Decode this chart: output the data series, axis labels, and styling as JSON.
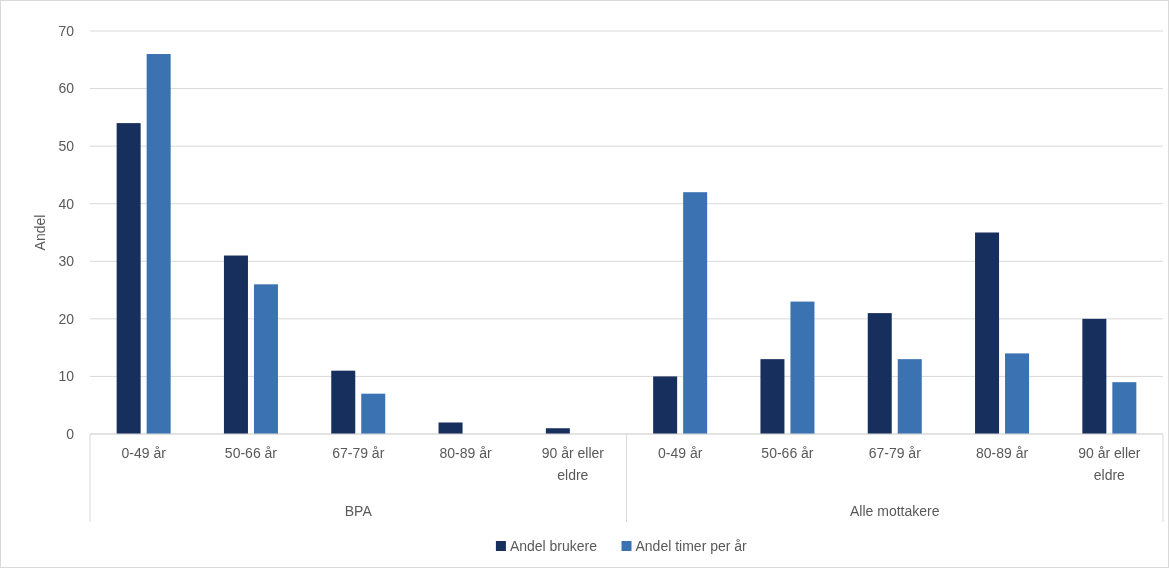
{
  "chart_data": {
    "type": "bar",
    "ylabel": "Andel",
    "categories": [
      "0-49 år",
      "50-66 år",
      "67-79 år",
      "80-89 år",
      "90 år eller eldre",
      "0-49 år",
      "50-66 år",
      "67-79 år",
      "80-89 år",
      "90 år eller eldre"
    ],
    "series": [
      {
        "name": "Andel brukere",
        "color": "#172f5d",
        "values": [
          54,
          31,
          11,
          2,
          1,
          10,
          13,
          21,
          35,
          20
        ]
      },
      {
        "name": "Andel timer per år",
        "color": "#3a72b2",
        "values": [
          66,
          26,
          7,
          0,
          0,
          42,
          23,
          13,
          14,
          9
        ]
      }
    ],
    "annotations": [
      "BPA",
      "Alle mottakere"
    ],
    "ylim": [
      0,
      70
    ],
    "yticks": [
      0,
      10,
      20,
      30,
      40,
      50,
      60,
      70
    ],
    "grid": "y",
    "legend": "bottom"
  }
}
